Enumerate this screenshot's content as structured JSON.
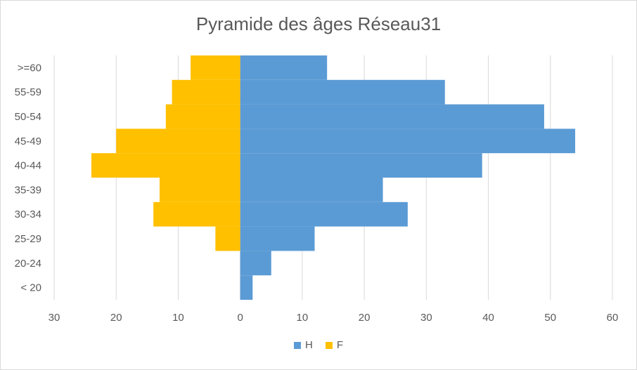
{
  "chart_data": {
    "type": "bar",
    "orientation": "horizontal",
    "title": "Pyramide des âges Réseau31",
    "categories": [
      "< 20",
      "20-24",
      "25-29",
      "30-34",
      "35-39",
      "40-44",
      "45-49",
      "50-54",
      "55-59",
      ">=60"
    ],
    "series": [
      {
        "name": "H",
        "color": "#5b9bd5",
        "values": [
          2,
          5,
          12,
          27,
          23,
          39,
          54,
          49,
          33,
          14
        ]
      },
      {
        "name": "F",
        "color": "#ffc000",
        "values": [
          0,
          0,
          4,
          14,
          13,
          24,
          20,
          12,
          11,
          8
        ]
      }
    ],
    "xlim": [
      -30,
      60
    ],
    "x_ticks": [
      -30,
      -20,
      -10,
      0,
      10,
      20,
      30,
      40,
      50,
      60
    ],
    "x_tick_labels": [
      "30",
      "20",
      "10",
      "0",
      "10",
      "20",
      "30",
      "40",
      "50",
      "60"
    ],
    "grid": true,
    "legend_position": "bottom"
  }
}
